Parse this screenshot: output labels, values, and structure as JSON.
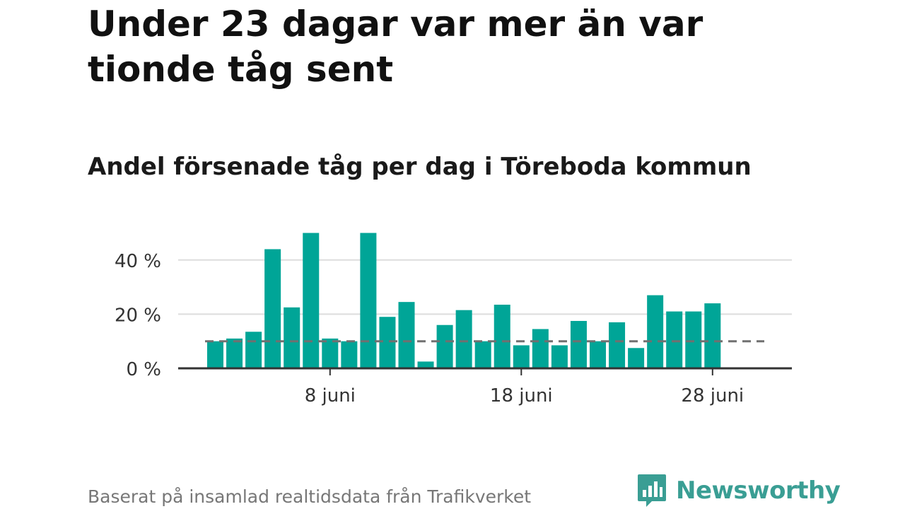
{
  "header": {
    "title": "Under 23 dagar var mer än var tionde tåg sent",
    "subtitle": "Andel försenade tåg per dag i Töreboda kommun"
  },
  "footer": {
    "source": "Baserat på insamlad realtidsdata från Trafikverket",
    "brand": "Newsworthy"
  },
  "colors": {
    "bar": "#00a597",
    "reference_line": "#707070",
    "grid": "#dddddd",
    "axis": "#333333",
    "brand": "#3a9e94"
  },
  "chart_data": {
    "type": "bar",
    "title": "Andel försenade tåg per dag i Töreboda kommun",
    "x": [
      "2 juni",
      "3 juni",
      "4 juni",
      "5 juni",
      "6 juni",
      "7 juni",
      "8 juni",
      "9 juni",
      "10 juni",
      "11 juni",
      "12 juni",
      "13 juni",
      "14 juni",
      "15 juni",
      "16 juni",
      "17 juni",
      "18 juni",
      "19 juni",
      "20 juni",
      "21 juni",
      "22 juni",
      "23 juni",
      "24 juni",
      "25 juni",
      "26 juni",
      "27 juni",
      "28 juni"
    ],
    "values": [
      10,
      11,
      13.5,
      44,
      22.5,
      50,
      11,
      10,
      50,
      19,
      24.5,
      2.5,
      16,
      21.5,
      10,
      23.5,
      8.5,
      14.5,
      8.5,
      17.5,
      10,
      17,
      7.5,
      27,
      21,
      21,
      24
    ],
    "reference_line": 10,
    "x_tick_labels": [
      "8 juni",
      "18 juni",
      "28 juni"
    ],
    "y_ticks": [
      0,
      20,
      40
    ],
    "y_tick_labels": [
      "0 %",
      "20 %",
      "40 %"
    ],
    "ylim": [
      0,
      50
    ],
    "grid": true,
    "legend": "none"
  }
}
